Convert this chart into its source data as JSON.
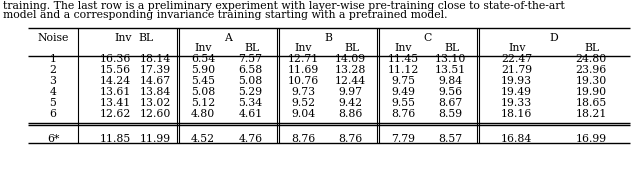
{
  "caption_line1": "training. The last row is a preliminary experiment with layer-wise pre-training close to state-of-the-art",
  "caption_line2": "model and a corresponding invariance training starting with a pretrained model.",
  "rows": [
    [
      "1",
      "16.36",
      "18.14",
      "6.54",
      "7.57",
      "12.71",
      "14.09",
      "11.45",
      "13.10",
      "22.47",
      "24.80"
    ],
    [
      "2",
      "15.56",
      "17.39",
      "5.90",
      "6.58",
      "11.69",
      "13.28",
      "11.12",
      "13.51",
      "21.79",
      "23.96"
    ],
    [
      "3",
      "14.24",
      "14.67",
      "5.45",
      "5.08",
      "10.76",
      "12.44",
      "9.75",
      "9.84",
      "19.93",
      "19.30"
    ],
    [
      "4",
      "13.61",
      "13.84",
      "5.08",
      "5.29",
      "9.73",
      "9.97",
      "9.49",
      "9.56",
      "19.49",
      "19.90"
    ],
    [
      "5",
      "13.41",
      "13.02",
      "5.12",
      "5.34",
      "9.52",
      "9.42",
      "9.55",
      "8.67",
      "19.33",
      "18.65"
    ],
    [
      "6",
      "12.62",
      "12.60",
      "4.80",
      "4.61",
      "9.04",
      "8.86",
      "8.76",
      "8.59",
      "18.16",
      "18.21"
    ]
  ],
  "last_row": [
    "6*",
    "11.85",
    "11.99",
    "4.52",
    "4.76",
    "8.76",
    "8.76",
    "7.79",
    "8.57",
    "16.84",
    "16.99"
  ],
  "background_color": "#ffffff",
  "text_color": "#000000",
  "caption_fontsize": 7.8,
  "table_fontsize": 7.8
}
